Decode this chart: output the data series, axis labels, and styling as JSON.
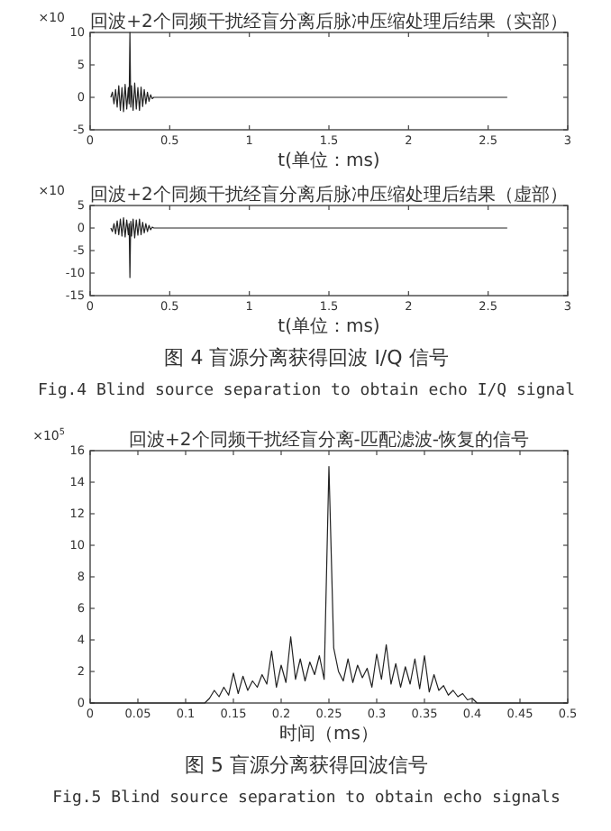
{
  "chart_data": [
    {
      "type": "line",
      "title": "回波+2个同频干扰经盲分离后脉冲压缩处理后结果（实部）",
      "xlabel": "t(单位：ms)",
      "annotations": [
        "×10"
      ],
      "xlim": [
        0,
        3
      ],
      "xticks": [
        0,
        0.5,
        1,
        1.5,
        2,
        2.5,
        3
      ],
      "ylim": [
        -5,
        10
      ],
      "yticks": [
        -5,
        0,
        5,
        10
      ],
      "grid": false,
      "x": [
        0.13,
        0.14,
        0.15,
        0.16,
        0.17,
        0.18,
        0.19,
        0.2,
        0.21,
        0.22,
        0.23,
        0.24,
        0.245,
        0.25,
        0.255,
        0.26,
        0.27,
        0.28,
        0.29,
        0.3,
        0.31,
        0.32,
        0.33,
        0.34,
        0.35,
        0.36,
        0.37,
        0.38,
        0.39,
        0.4,
        2.62
      ],
      "series": [
        {
          "color": "#222222",
          "values": [
            0,
            0.8,
            -1,
            1.2,
            -1.5,
            1.8,
            -2,
            1.5,
            -2.2,
            2,
            -1.8,
            1.5,
            -1,
            10,
            -1.5,
            1.8,
            -2,
            2.2,
            -1.8,
            1.5,
            -2,
            1.6,
            -1.4,
            1.2,
            -1,
            0.8,
            -0.6,
            0.4,
            -0.2,
            0,
            0
          ]
        }
      ]
    },
    {
      "type": "line",
      "title": "回波+2个同频干扰经盲分离后脉冲压缩处理后结果（虚部）",
      "xlabel": "t(单位：ms)",
      "annotations": [
        "×10",
        "图 4 盲源分离获得回波 I/Q 信号",
        "Fig.4 Blind source separation to obtain echo I/Q signal"
      ],
      "xlim": [
        0,
        3
      ],
      "xticks": [
        0,
        0.5,
        1,
        1.5,
        2,
        2.5,
        3
      ],
      "ylim": [
        -15,
        5
      ],
      "yticks": [
        -15,
        -10,
        -5,
        0,
        5
      ],
      "grid": false,
      "x": [
        0.13,
        0.14,
        0.15,
        0.16,
        0.17,
        0.18,
        0.19,
        0.2,
        0.21,
        0.22,
        0.23,
        0.24,
        0.245,
        0.25,
        0.255,
        0.26,
        0.27,
        0.28,
        0.29,
        0.3,
        0.31,
        0.32,
        0.33,
        0.34,
        0.35,
        0.36,
        0.37,
        0.38,
        0.39,
        0.4,
        2.62
      ],
      "series": [
        {
          "color": "#222222",
          "values": [
            0,
            -0.8,
            1,
            -1.3,
            1.6,
            -1.5,
            2,
            -1.8,
            2.3,
            -2,
            1.8,
            -1.5,
            1,
            -11,
            1.5,
            -1.8,
            2,
            -2.2,
            1.8,
            -1.6,
            2,
            -1.5,
            1.3,
            -1.1,
            1,
            -0.8,
            0.6,
            -0.4,
            0.2,
            0,
            0
          ]
        }
      ]
    },
    {
      "type": "line",
      "title": "回波+2个同频干扰经盲分离-匹配滤波-恢复的信号",
      "xlabel": "时间（ms）",
      "annotations": [
        "×10$^{5}$",
        "图 5 盲源分离获得回波信号",
        "Fig.5 Blind source separation to obtain echo signals"
      ],
      "xlim": [
        0,
        0.5
      ],
      "xticks": [
        0,
        0.05,
        0.1,
        0.15,
        0.2,
        0.25,
        0.3,
        0.35,
        0.4,
        0.45,
        0.5
      ],
      "ylim": [
        0,
        16
      ],
      "yticks": [
        0,
        2,
        4,
        6,
        8,
        10,
        12,
        14,
        16
      ],
      "grid": false,
      "x": [
        0,
        0.12,
        0.125,
        0.13,
        0.135,
        0.14,
        0.145,
        0.15,
        0.155,
        0.16,
        0.165,
        0.17,
        0.175,
        0.18,
        0.185,
        0.19,
        0.195,
        0.2,
        0.205,
        0.21,
        0.215,
        0.22,
        0.225,
        0.23,
        0.235,
        0.24,
        0.245,
        0.25,
        0.255,
        0.26,
        0.265,
        0.27,
        0.275,
        0.28,
        0.285,
        0.29,
        0.295,
        0.3,
        0.305,
        0.31,
        0.315,
        0.32,
        0.325,
        0.33,
        0.335,
        0.34,
        0.345,
        0.35,
        0.355,
        0.36,
        0.365,
        0.37,
        0.375,
        0.38,
        0.385,
        0.39,
        0.395,
        0.4,
        0.405,
        0.5
      ],
      "series": [
        {
          "color": "#222222",
          "values": [
            0,
            0,
            0.3,
            0.8,
            0.4,
            1,
            0.5,
            1.9,
            0.6,
            1.7,
            0.8,
            1.4,
            1,
            1.8,
            1.2,
            3.3,
            1,
            2.4,
            1.3,
            4.2,
            1.5,
            2.8,
            1.4,
            2.6,
            1.8,
            3,
            1.5,
            15,
            3.5,
            2,
            1.4,
            2.8,
            1.3,
            2.4,
            1.6,
            2.2,
            1,
            3.1,
            1.5,
            3.7,
            1.2,
            2.5,
            1,
            2.3,
            1.2,
            2.8,
            0.9,
            3,
            0.7,
            1.8,
            0.8,
            1.1,
            0.5,
            0.8,
            0.4,
            0.6,
            0.2,
            0.3,
            0,
            0
          ]
        }
      ]
    }
  ]
}
